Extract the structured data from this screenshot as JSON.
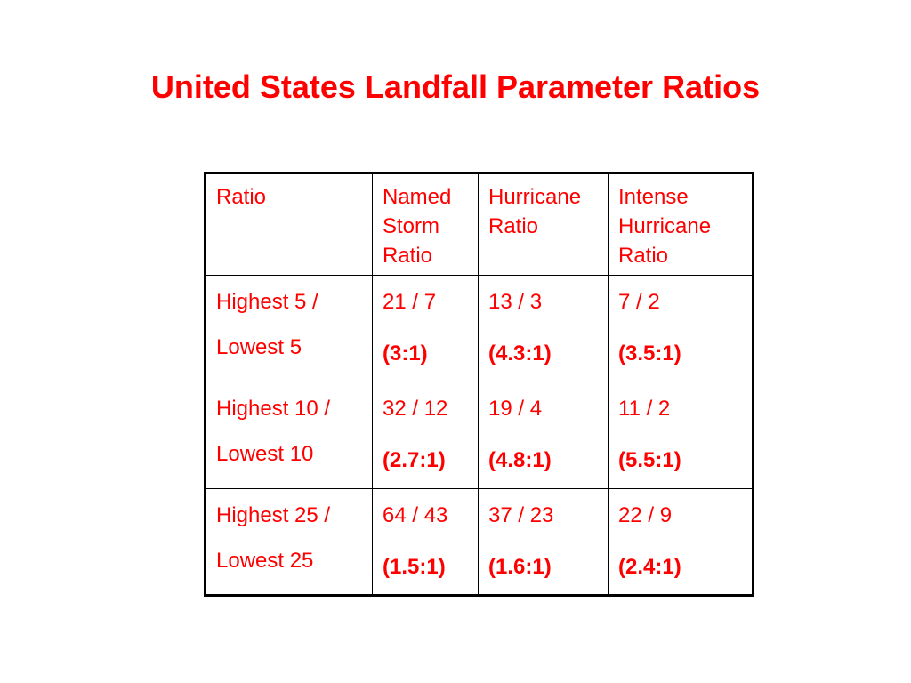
{
  "title": "United States Landfall Parameter Ratios",
  "table": {
    "headers": [
      [
        "Ratio"
      ],
      [
        "Named",
        "Storm",
        "Ratio"
      ],
      [
        "Hurricane",
        "Ratio"
      ],
      [
        "Intense",
        "Hurricane",
        "Ratio"
      ]
    ],
    "rows": [
      {
        "label": [
          "Highest 5 /",
          "Lowest 5"
        ],
        "cells": [
          {
            "count": "21 / 7",
            "ratio": "(3:1)"
          },
          {
            "count": "13 / 3",
            "ratio": "(4.3:1)"
          },
          {
            "count": "7 / 2",
            "ratio": "(3.5:1)"
          }
        ]
      },
      {
        "label": [
          "Highest 10 /",
          "Lowest 10"
        ],
        "cells": [
          {
            "count": "32 / 12",
            "ratio": "(2.7:1)"
          },
          {
            "count": "19 / 4",
            "ratio": "(4.8:1)"
          },
          {
            "count": "11 / 2",
            "ratio": "(5.5:1)"
          }
        ]
      },
      {
        "label": [
          "Highest 25 /",
          "Lowest 25"
        ],
        "cells": [
          {
            "count": "64 / 43",
            "ratio": "(1.5:1)"
          },
          {
            "count": "37 / 23",
            "ratio": "(1.6:1)"
          },
          {
            "count": "22 / 9",
            "ratio": "(2.4:1)"
          }
        ]
      }
    ]
  },
  "colors": {
    "text": "#ff0000",
    "border": "#000000",
    "background": "#ffffff"
  }
}
